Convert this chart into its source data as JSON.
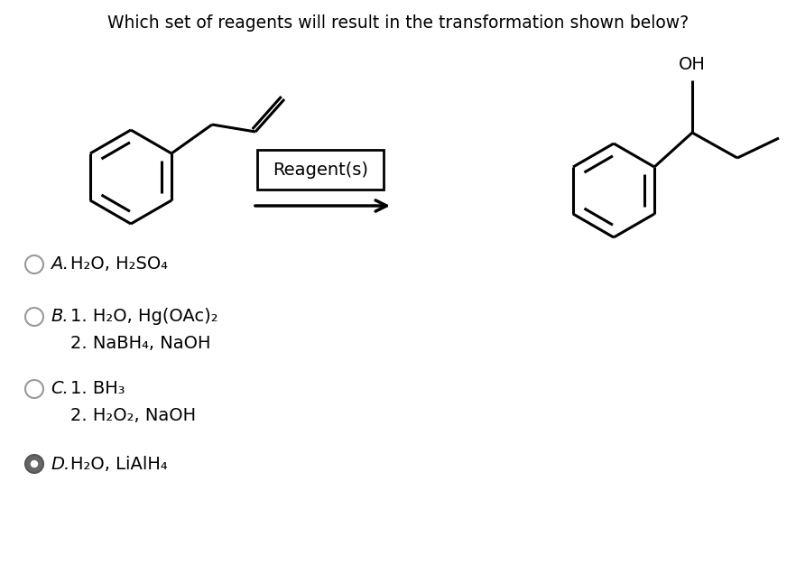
{
  "title": "Which set of reagents will result in the transformation shown below?",
  "title_fontsize": 13.5,
  "background_color": "#ffffff",
  "options": [
    {
      "label": "A.",
      "lines": [
        "H₂O, H₂SO₄"
      ],
      "selected": false,
      "n_lines": 1
    },
    {
      "label": "B.",
      "lines": [
        "1. H₂O, Hg(OAc)₂",
        "2. NaBH₄, NaOH"
      ],
      "selected": false,
      "n_lines": 2
    },
    {
      "label": "C.",
      "lines": [
        "1. BH₃",
        "2. H₂O₂, NaOH"
      ],
      "selected": false,
      "n_lines": 2
    },
    {
      "label": "D.",
      "lines": [
        "H₂O, LiAlH₄"
      ],
      "selected": true,
      "n_lines": 1
    }
  ],
  "reagent_box_text": "Reagent(s)",
  "option_fontsize": 14,
  "lw": 2.2
}
